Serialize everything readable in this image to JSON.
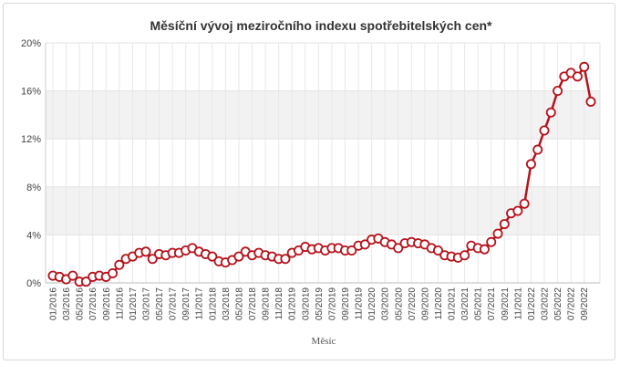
{
  "chart_data": {
    "type": "line",
    "title": "Měsíční vývoj meziročního indexu spotřebitelských cen*",
    "xlabel": "Měsíc",
    "ylabel": "",
    "ylim": [
      0,
      20
    ],
    "yticks": [
      "0%",
      "4%",
      "8%",
      "12%",
      "16%",
      "20%"
    ],
    "ytick_values": [
      0,
      4,
      8,
      12,
      16,
      20
    ],
    "xtick_labels": [
      "01/2016",
      "03/2016",
      "05/2016",
      "07/2016",
      "09/2016",
      "11/2016",
      "01/2017",
      "03/2017",
      "05/2017",
      "07/2017",
      "09/2017",
      "11/2017",
      "01/2018",
      "03/2018",
      "05/2018",
      "07/2018",
      "09/2018",
      "11/2018",
      "01/2019",
      "03/2019",
      "05/2019",
      "07/2019",
      "09/2019",
      "11/2019",
      "01/2020",
      "03/2020",
      "05/2020",
      "07/2020",
      "09/2020",
      "11/2020",
      "01/2021",
      "03/2021",
      "05/2021",
      "07/2021",
      "09/2021",
      "11/2021",
      "01/2022",
      "03/2022",
      "05/2022",
      "07/2022",
      "09/2022"
    ],
    "grid": "alternating horizontal bands",
    "series": [
      {
        "color": "#b5121b",
        "x": [
          "01/2016",
          "02/2016",
          "03/2016",
          "04/2016",
          "05/2016",
          "06/2016",
          "07/2016",
          "08/2016",
          "09/2016",
          "10/2016",
          "11/2016",
          "12/2016",
          "01/2017",
          "02/2017",
          "03/2017",
          "04/2017",
          "05/2017",
          "06/2017",
          "07/2017",
          "08/2017",
          "09/2017",
          "10/2017",
          "11/2017",
          "12/2017",
          "01/2018",
          "02/2018",
          "03/2018",
          "04/2018",
          "05/2018",
          "06/2018",
          "07/2018",
          "08/2018",
          "09/2018",
          "10/2018",
          "11/2018",
          "12/2018",
          "01/2019",
          "02/2019",
          "03/2019",
          "04/2019",
          "05/2019",
          "06/2019",
          "07/2019",
          "08/2019",
          "09/2019",
          "10/2019",
          "11/2019",
          "12/2019",
          "01/2020",
          "02/2020",
          "03/2020",
          "04/2020",
          "05/2020",
          "06/2020",
          "07/2020",
          "08/2020",
          "09/2020",
          "10/2020",
          "11/2020",
          "12/2020",
          "01/2021",
          "02/2021",
          "03/2021",
          "04/2021",
          "05/2021",
          "06/2021",
          "07/2021",
          "08/2021",
          "09/2021",
          "10/2021",
          "11/2021",
          "12/2021",
          "01/2022",
          "02/2022",
          "03/2022",
          "04/2022",
          "05/2022",
          "06/2022",
          "07/2022",
          "08/2022",
          "09/2022",
          "10/2022"
        ],
        "values": [
          0.6,
          0.5,
          0.3,
          0.6,
          0.1,
          0.1,
          0.5,
          0.6,
          0.5,
          0.8,
          1.5,
          2.0,
          2.2,
          2.5,
          2.6,
          2.0,
          2.4,
          2.3,
          2.5,
          2.5,
          2.7,
          2.9,
          2.6,
          2.4,
          2.2,
          1.8,
          1.7,
          1.9,
          2.2,
          2.6,
          2.3,
          2.5,
          2.3,
          2.2,
          2.0,
          2.0,
          2.5,
          2.7,
          3.0,
          2.8,
          2.9,
          2.7,
          2.9,
          2.9,
          2.7,
          2.7,
          3.1,
          3.2,
          3.6,
          3.7,
          3.4,
          3.2,
          2.9,
          3.3,
          3.4,
          3.3,
          3.2,
          2.9,
          2.7,
          2.3,
          2.2,
          2.1,
          2.3,
          3.1,
          2.9,
          2.8,
          3.4,
          4.1,
          4.9,
          5.8,
          6.0,
          6.6,
          9.9,
          11.1,
          12.7,
          14.2,
          16.0,
          17.2,
          17.5,
          17.2,
          18.0,
          15.1
        ]
      }
    ]
  }
}
